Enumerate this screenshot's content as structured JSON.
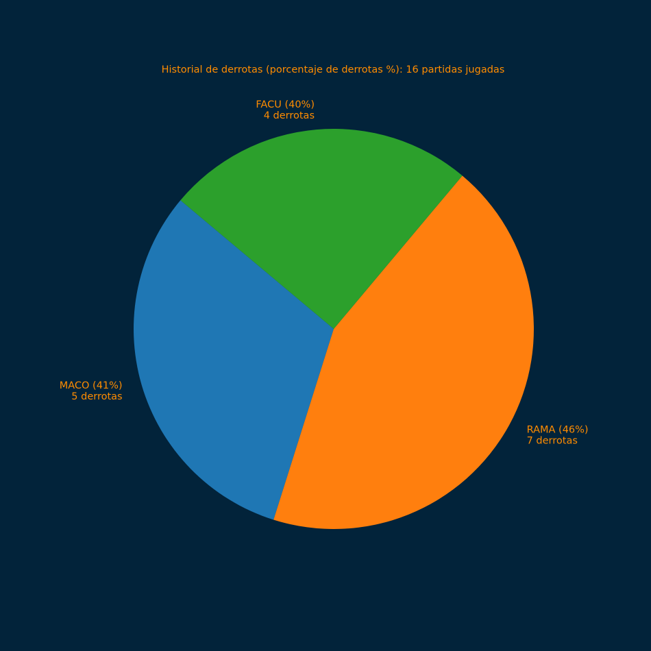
{
  "chart_data": {
    "type": "pie",
    "title": "Historial de derrotas (porcentaje de derrotas %): 16 partidas jugadas",
    "text_color": "#ff8c00",
    "background_color": "#02233a",
    "slices": [
      {
        "name": "MACO",
        "value": 5,
        "label_line1": "MACO (41%)",
        "label_line2": "5 derrotas",
        "color": "#1f77b4",
        "label_side": "left"
      },
      {
        "name": "RAMA",
        "value": 7,
        "label_line1": "RAMA (46%)",
        "label_line2": "7 derrotas",
        "color": "#ff7f0e",
        "label_side": "right"
      },
      {
        "name": "FACU",
        "value": 4,
        "label_line1": "FACU (40%)",
        "label_line2": "4 derrotas",
        "color": "#2ca02c",
        "label_side": "top"
      }
    ],
    "start_angle_deg": 140,
    "direction": "counterclockwise"
  }
}
